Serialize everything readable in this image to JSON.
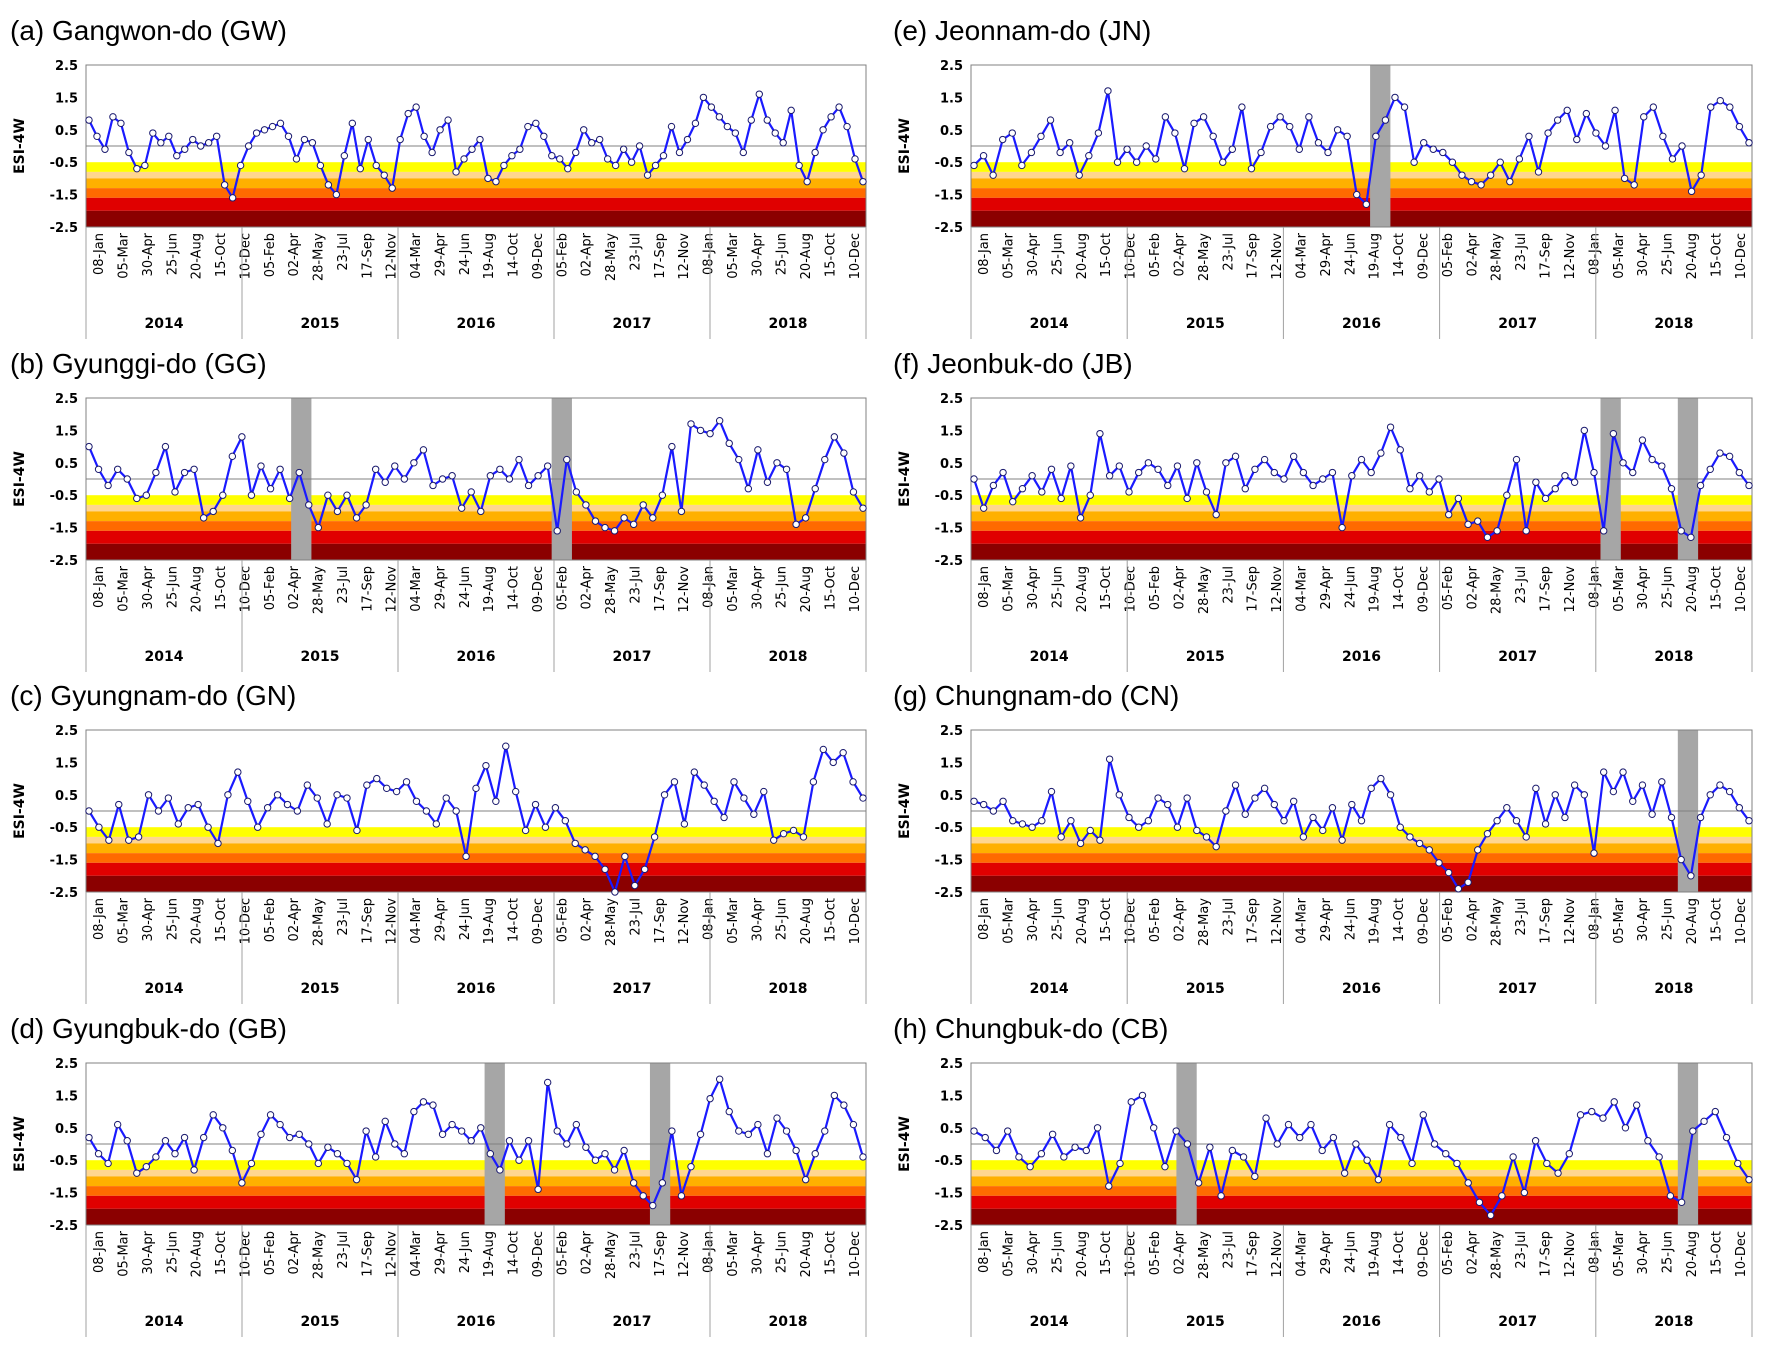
{
  "figure": {
    "band_colors": [
      "#ffff00",
      "#ffd690",
      "#ffb000",
      "#ff6a00",
      "#e00000",
      "#8b0000"
    ],
    "band_edges": [
      -0.5,
      -0.8,
      -1.0,
      -1.3,
      -1.6,
      -2.0,
      -2.5
    ],
    "line_color": "#1a1aff",
    "shade_color": "#a6a6a6"
  },
  "chart_data": [
    {
      "type": "line",
      "title": "(a) Gangwon-do (GW)",
      "ylabel": "ESI-4W",
      "ylim": [
        -2.5,
        2.5
      ],
      "yticks": [
        "2.5",
        "1.5",
        "0.5",
        "-0.5",
        "-1.5",
        "-2.5"
      ],
      "xticks": [
        "08-Jan",
        "05-Mar",
        "30-Apr",
        "25-Jun",
        "20-Aug",
        "15-Oct",
        "10-Dec",
        "05-Feb",
        "02-Apr",
        "28-May",
        "23-Jul",
        "17-Sep",
        "12-Nov",
        "04-Mar",
        "29-Apr",
        "24-Jun",
        "19-Aug",
        "14-Oct",
        "09-Dec",
        "05-Feb",
        "02-Apr",
        "28-May",
        "23-Jul",
        "17-Sep",
        "12-Nov",
        "08-Jan",
        "05-Mar",
        "30-Apr",
        "25-Jun",
        "20-Aug",
        "15-Oct",
        "10-Dec"
      ],
      "years": [
        "2014",
        "2015",
        "2016",
        "2017",
        "2018"
      ],
      "shaded_periods": [],
      "values": [
        0.8,
        0.3,
        -0.1,
        0.9,
        0.7,
        -0.2,
        -0.7,
        -0.6,
        0.4,
        0.1,
        0.3,
        -0.3,
        -0.1,
        0.2,
        0.0,
        0.1,
        0.3,
        -1.2,
        -1.6,
        -0.6,
        0.0,
        0.4,
        0.5,
        0.6,
        0.7,
        0.3,
        -0.4,
        0.2,
        0.1,
        -0.6,
        -1.2,
        -1.5,
        -0.3,
        0.7,
        -0.7,
        0.2,
        -0.6,
        -0.9,
        -1.3,
        0.2,
        1.0,
        1.2,
        0.3,
        -0.2,
        0.5,
        0.8,
        -0.8,
        -0.4,
        -0.1,
        0.2,
        -1.0,
        -1.1,
        -0.6,
        -0.3,
        -0.1,
        0.6,
        0.7,
        0.3,
        -0.3,
        -0.4,
        -0.7,
        -0.2,
        0.5,
        0.1,
        0.2,
        -0.4,
        -0.6,
        -0.1,
        -0.5,
        0.0,
        -0.9,
        -0.6,
        -0.3,
        0.6,
        -0.2,
        0.2,
        0.7,
        1.5,
        1.2,
        0.9,
        0.6,
        0.4,
        -0.2,
        0.8,
        1.6,
        0.8,
        0.4,
        0.1,
        1.1,
        -0.6,
        -1.1,
        -0.2,
        0.5,
        0.9,
        1.2,
        0.6,
        -0.4,
        -1.1
      ],
      "hline": 0
    },
    {
      "type": "line",
      "title": "(b) Gyunggi-do (GG)",
      "ylabel": "ESI-4W",
      "ylim": [
        -2.5,
        2.5
      ],
      "yticks": [
        "2.5",
        "1.5",
        "0.5",
        "-0.5",
        "-1.5",
        "-2.5"
      ],
      "xticks": [
        "08-Jan",
        "05-Mar",
        "30-Apr",
        "25-Jun",
        "20-Aug",
        "15-Oct",
        "10-Dec",
        "05-Feb",
        "02-Apr",
        "28-May",
        "23-Jul",
        "17-Sep",
        "12-Nov",
        "04-Mar",
        "29-Apr",
        "24-Jun",
        "19-Aug",
        "14-Oct",
        "09-Dec",
        "05-Feb",
        "02-Apr",
        "28-May",
        "23-Jul",
        "17-Sep",
        "12-Nov",
        "08-Jan",
        "05-Mar",
        "30-Apr",
        "25-Jun",
        "20-Aug",
        "15-Oct",
        "10-Dec"
      ],
      "years": [
        "2014",
        "2015",
        "2016",
        "2017",
        "2018"
      ],
      "shaded_periods": [
        [
          0.263,
          0.289
        ],
        [
          0.597,
          0.623
        ]
      ],
      "values": [
        1.0,
        0.3,
        -0.2,
        0.3,
        0.0,
        -0.6,
        -0.5,
        0.2,
        1.0,
        -0.4,
        0.2,
        0.3,
        -1.2,
        -1.0,
        -0.5,
        0.7,
        1.3,
        -0.5,
        0.4,
        -0.3,
        0.3,
        -0.6,
        0.2,
        -0.8,
        -1.5,
        -0.5,
        -1.0,
        -0.5,
        -1.2,
        -0.8,
        0.3,
        -0.1,
        0.4,
        0.0,
        0.5,
        0.9,
        -0.2,
        0.0,
        0.1,
        -0.9,
        -0.4,
        -1.0,
        0.1,
        0.3,
        0.0,
        0.6,
        -0.2,
        0.1,
        0.4,
        -1.6,
        0.6,
        -0.4,
        -0.8,
        -1.3,
        -1.5,
        -1.6,
        -1.2,
        -1.4,
        -0.8,
        -1.2,
        -0.5,
        1.0,
        -1.0,
        1.7,
        1.5,
        1.4,
        1.8,
        1.1,
        0.6,
        -0.3,
        0.9,
        -0.1,
        0.5,
        0.3,
        -1.4,
        -1.2,
        -0.3,
        0.6,
        1.3,
        0.8,
        -0.4,
        -0.9
      ],
      "hline": 0
    },
    {
      "type": "line",
      "title": "(c) Gyungnam-do (GN)",
      "ylabel": "ESI-4W",
      "ylim": [
        -2.5,
        2.5
      ],
      "yticks": [
        "2.5",
        "1.5",
        "0.5",
        "-0.5",
        "-1.5",
        "-2.5"
      ],
      "xticks": [
        "08-Jan",
        "05-Mar",
        "30-Apr",
        "25-Jun",
        "20-Aug",
        "15-Oct",
        "10-Dec",
        "05-Feb",
        "02-Apr",
        "28-May",
        "23-Jul",
        "17-Sep",
        "12-Nov",
        "04-Mar",
        "29-Apr",
        "24-Jun",
        "19-Aug",
        "14-Oct",
        "09-Dec",
        "05-Feb",
        "02-Apr",
        "28-May",
        "23-Jul",
        "17-Sep",
        "12-Nov",
        "08-Jan",
        "05-Mar",
        "30-Apr",
        "25-Jun",
        "20-Aug",
        "15-Oct",
        "10-Dec"
      ],
      "years": [
        "2014",
        "2015",
        "2016",
        "2017",
        "2018"
      ],
      "shaded_periods": [],
      "values": [
        0.0,
        -0.5,
        -0.9,
        0.2,
        -0.9,
        -0.8,
        0.5,
        0.0,
        0.4,
        -0.4,
        0.1,
        0.2,
        -0.5,
        -1.0,
        0.5,
        1.2,
        0.3,
        -0.5,
        0.1,
        0.5,
        0.2,
        0.0,
        0.8,
        0.4,
        -0.4,
        0.5,
        0.4,
        -0.6,
        0.8,
        1.0,
        0.7,
        0.6,
        0.9,
        0.3,
        0.0,
        -0.4,
        0.4,
        0.0,
        -1.4,
        0.7,
        1.4,
        0.3,
        2.0,
        0.6,
        -0.6,
        0.2,
        -0.5,
        0.1,
        -0.3,
        -1.0,
        -1.2,
        -1.4,
        -1.8,
        -2.5,
        -1.4,
        -2.3,
        -1.8,
        -0.8,
        0.5,
        0.9,
        -0.4,
        1.2,
        0.8,
        0.3,
        -0.2,
        0.9,
        0.4,
        -0.1,
        0.6,
        -0.9,
        -0.7,
        -0.6,
        -0.8,
        0.9,
        1.9,
        1.5,
        1.8,
        0.9,
        0.4
      ],
      "hline": 0
    },
    {
      "type": "line",
      "title": "(d) Gyungbuk-do (GB)",
      "ylabel": "ESI-4W",
      "ylim": [
        -2.5,
        2.5
      ],
      "yticks": [
        "2.5",
        "1.5",
        "0.5",
        "-0.5",
        "-1.5",
        "-2.5"
      ],
      "xticks": [
        "08-Jan",
        "05-Mar",
        "30-Apr",
        "25-Jun",
        "20-Aug",
        "15-Oct",
        "10-Dec",
        "05-Feb",
        "02-Apr",
        "28-May",
        "23-Jul",
        "17-Sep",
        "12-Nov",
        "04-Mar",
        "29-Apr",
        "24-Jun",
        "19-Aug",
        "14-Oct",
        "09-Dec",
        "05-Feb",
        "02-Apr",
        "28-May",
        "23-Jul",
        "17-Sep",
        "12-Nov",
        "08-Jan",
        "05-Mar",
        "30-Apr",
        "25-Jun",
        "20-Aug",
        "15-Oct",
        "10-Dec"
      ],
      "years": [
        "2014",
        "2015",
        "2016",
        "2017",
        "2018"
      ],
      "shaded_periods": [
        [
          0.511,
          0.537
        ],
        [
          0.723,
          0.749
        ]
      ],
      "values": [
        0.2,
        -0.3,
        -0.6,
        0.6,
        0.1,
        -0.9,
        -0.7,
        -0.4,
        0.1,
        -0.3,
        0.2,
        -0.8,
        0.2,
        0.9,
        0.5,
        -0.2,
        -1.2,
        -0.6,
        0.3,
        0.9,
        0.6,
        0.2,
        0.3,
        0.0,
        -0.6,
        -0.1,
        -0.3,
        -0.6,
        -1.1,
        0.4,
        -0.4,
        0.7,
        0.0,
        -0.3,
        1.0,
        1.3,
        1.2,
        0.3,
        0.6,
        0.4,
        0.1,
        0.5,
        -0.3,
        -0.8,
        0.1,
        -0.5,
        0.1,
        -1.4,
        1.9,
        0.4,
        0.0,
        0.6,
        -0.1,
        -0.5,
        -0.3,
        -0.8,
        -0.2,
        -1.2,
        -1.6,
        -1.9,
        -1.2,
        0.4,
        -1.6,
        -0.7,
        0.3,
        1.4,
        2.0,
        1.0,
        0.4,
        0.3,
        0.6,
        -0.3,
        0.8,
        0.4,
        -0.2,
        -1.1,
        -0.3,
        0.4,
        1.5,
        1.2,
        0.6,
        -0.4
      ],
      "hline": 0
    },
    {
      "type": "line",
      "title": "(e) Jeonnam-do (JN)",
      "ylabel": "ESI-4W",
      "ylim": [
        -2.5,
        2.5
      ],
      "yticks": [
        "2.5",
        "1.5",
        "0.5",
        "-0.5",
        "-1.5",
        "-2.5"
      ],
      "xticks": [
        "08-Jan",
        "05-Mar",
        "30-Apr",
        "25-Jun",
        "20-Aug",
        "15-Oct",
        "10-Dec",
        "05-Feb",
        "02-Apr",
        "28-May",
        "23-Jul",
        "17-Sep",
        "12-Nov",
        "04-Mar",
        "29-Apr",
        "24-Jun",
        "19-Aug",
        "14-Oct",
        "09-Dec",
        "05-Feb",
        "02-Apr",
        "28-May",
        "23-Jul",
        "17-Sep",
        "12-Nov",
        "08-Jan",
        "05-Mar",
        "30-Apr",
        "25-Jun",
        "20-Aug",
        "15-Oct",
        "10-Dec"
      ],
      "years": [
        "2014",
        "2015",
        "2016",
        "2017",
        "2018"
      ],
      "shaded_periods": [
        [
          0.511,
          0.537
        ]
      ],
      "values": [
        -0.6,
        -0.3,
        -0.9,
        0.2,
        0.4,
        -0.6,
        -0.2,
        0.3,
        0.8,
        -0.2,
        0.1,
        -0.9,
        -0.3,
        0.4,
        1.7,
        -0.5,
        -0.1,
        -0.5,
        0.0,
        -0.4,
        0.9,
        0.4,
        -0.7,
        0.7,
        0.9,
        0.3,
        -0.5,
        -0.1,
        1.2,
        -0.7,
        -0.2,
        0.6,
        0.9,
        0.6,
        -0.1,
        0.9,
        0.1,
        -0.2,
        0.5,
        0.3,
        -1.5,
        -1.8,
        0.3,
        0.8,
        1.5,
        1.2,
        -0.5,
        0.1,
        -0.1,
        -0.2,
        -0.5,
        -0.9,
        -1.1,
        -1.2,
        -0.9,
        -0.5,
        -1.1,
        -0.4,
        0.3,
        -0.8,
        0.4,
        0.8,
        1.1,
        0.2,
        1.0,
        0.4,
        0.0,
        1.1,
        -1.0,
        -1.2,
        0.9,
        1.2,
        0.3,
        -0.4,
        0.0,
        -1.4,
        -0.9,
        1.2,
        1.4,
        1.2,
        0.6,
        0.1
      ],
      "hline": 0
    },
    {
      "type": "line",
      "title": "(f) Jeonbuk-do (JB)",
      "ylabel": "ESI-4W",
      "ylim": [
        -2.5,
        2.5
      ],
      "yticks": [
        "2.5",
        "1.5",
        "0.5",
        "-0.5",
        "-1.5",
        "-2.5"
      ],
      "xticks": [
        "08-Jan",
        "05-Mar",
        "30-Apr",
        "25-Jun",
        "20-Aug",
        "15-Oct",
        "10-Dec",
        "05-Feb",
        "02-Apr",
        "28-May",
        "23-Jul",
        "17-Sep",
        "12-Nov",
        "04-Mar",
        "29-Apr",
        "24-Jun",
        "19-Aug",
        "14-Oct",
        "09-Dec",
        "05-Feb",
        "02-Apr",
        "28-May",
        "23-Jul",
        "17-Sep",
        "12-Nov",
        "08-Jan",
        "05-Mar",
        "30-Apr",
        "25-Jun",
        "20-Aug",
        "15-Oct",
        "10-Dec"
      ],
      "years": [
        "2014",
        "2015",
        "2016",
        "2017",
        "2018"
      ],
      "shaded_periods": [
        [
          0.806,
          0.832
        ],
        [
          0.905,
          0.931
        ]
      ],
      "values": [
        0.0,
        -0.9,
        -0.2,
        0.2,
        -0.7,
        -0.3,
        0.1,
        -0.4,
        0.3,
        -0.6,
        0.4,
        -1.2,
        -0.5,
        1.4,
        0.1,
        0.4,
        -0.4,
        0.2,
        0.5,
        0.3,
        -0.2,
        0.4,
        -0.6,
        0.5,
        -0.4,
        -1.1,
        0.5,
        0.7,
        -0.3,
        0.3,
        0.6,
        0.2,
        0.0,
        0.7,
        0.2,
        -0.2,
        0.0,
        0.2,
        -1.5,
        0.1,
        0.6,
        0.2,
        0.8,
        1.6,
        0.9,
        -0.3,
        0.1,
        -0.4,
        0.0,
        -1.1,
        -0.6,
        -1.4,
        -1.3,
        -1.8,
        -1.6,
        -0.5,
        0.6,
        -1.6,
        -0.1,
        -0.6,
        -0.3,
        0.1,
        -0.1,
        1.5,
        0.2,
        -1.6,
        1.4,
        0.5,
        0.2,
        1.2,
        0.6,
        0.4,
        -0.3,
        -1.6,
        -1.8,
        -0.2,
        0.3,
        0.8,
        0.7,
        0.2,
        -0.2
      ],
      "hline": 0
    },
    {
      "type": "line",
      "title": "(g) Chungnam-do (CN)",
      "ylabel": "ESI-4W",
      "ylim": [
        -2.5,
        2.5
      ],
      "yticks": [
        "2.5",
        "1.5",
        "0.5",
        "-0.5",
        "-1.5",
        "-2.5"
      ],
      "xticks": [
        "08-Jan",
        "05-Mar",
        "30-Apr",
        "25-Jun",
        "20-Aug",
        "15-Oct",
        "10-Dec",
        "05-Feb",
        "02-Apr",
        "28-May",
        "23-Jul",
        "17-Sep",
        "12-Nov",
        "04-Mar",
        "29-Apr",
        "24-Jun",
        "19-Aug",
        "14-Oct",
        "09-Dec",
        "05-Feb",
        "02-Apr",
        "28-May",
        "23-Jul",
        "17-Sep",
        "12-Nov",
        "08-Jan",
        "05-Mar",
        "30-Apr",
        "25-Jun",
        "20-Aug",
        "15-Oct",
        "10-Dec"
      ],
      "years": [
        "2014",
        "2015",
        "2016",
        "2017",
        "2018"
      ],
      "shaded_periods": [
        [
          0.905,
          0.931
        ]
      ],
      "values": [
        0.3,
        0.2,
        0.0,
        0.3,
        -0.3,
        -0.4,
        -0.5,
        -0.3,
        0.6,
        -0.8,
        -0.3,
        -1.0,
        -0.6,
        -0.9,
        1.6,
        0.5,
        -0.2,
        -0.5,
        -0.3,
        0.4,
        0.2,
        -0.5,
        0.4,
        -0.6,
        -0.8,
        -1.1,
        0.0,
        0.8,
        -0.1,
        0.4,
        0.7,
        0.2,
        -0.3,
        0.3,
        -0.8,
        -0.2,
        -0.6,
        0.1,
        -0.9,
        0.2,
        -0.3,
        0.7,
        1.0,
        0.5,
        -0.5,
        -0.8,
        -1.0,
        -1.2,
        -1.6,
        -1.9,
        -2.4,
        -2.2,
        -1.2,
        -0.7,
        -0.3,
        0.1,
        -0.3,
        -0.8,
        0.7,
        -0.4,
        0.5,
        -0.2,
        0.8,
        0.5,
        -1.3,
        1.2,
        0.6,
        1.2,
        0.3,
        0.8,
        -0.1,
        0.9,
        -0.2,
        -1.5,
        -2.0,
        -0.2,
        0.5,
        0.8,
        0.6,
        0.1,
        -0.3
      ],
      "hline": 0
    },
    {
      "type": "line",
      "title": "(h) Chungbuk-do (CB)",
      "ylabel": "ESI-4W",
      "ylim": [
        -2.5,
        2.5
      ],
      "yticks": [
        "2.5",
        "1.5",
        "0.5",
        "-0.5",
        "-1.5",
        "-2.5"
      ],
      "xticks": [
        "08-Jan",
        "05-Mar",
        "30-Apr",
        "25-Jun",
        "20-Aug",
        "15-Oct",
        "10-Dec",
        "05-Feb",
        "02-Apr",
        "28-May",
        "23-Jul",
        "17-Sep",
        "12-Nov",
        "04-Mar",
        "29-Apr",
        "24-Jun",
        "19-Aug",
        "14-Oct",
        "09-Dec",
        "05-Feb",
        "02-Apr",
        "28-May",
        "23-Jul",
        "17-Sep",
        "12-Nov",
        "08-Jan",
        "05-Mar",
        "30-Apr",
        "25-Jun",
        "20-Aug",
        "15-Oct",
        "10-Dec"
      ],
      "years": [
        "2014",
        "2015",
        "2016",
        "2017",
        "2018"
      ],
      "shaded_periods": [
        [
          0.263,
          0.289
        ],
        [
          0.905,
          0.931
        ]
      ],
      "values": [
        0.4,
        0.2,
        -0.2,
        0.4,
        -0.4,
        -0.7,
        -0.3,
        0.3,
        -0.4,
        -0.1,
        -0.2,
        0.5,
        -1.3,
        -0.6,
        1.3,
        1.5,
        0.5,
        -0.7,
        0.4,
        0.0,
        -1.2,
        -0.1,
        -1.6,
        -0.2,
        -0.4,
        -1.0,
        0.8,
        0.0,
        0.6,
        0.2,
        0.6,
        -0.2,
        0.2,
        -0.9,
        0.0,
        -0.5,
        -1.1,
        0.6,
        0.2,
        -0.6,
        0.9,
        0.0,
        -0.3,
        -0.6,
        -1.2,
        -1.8,
        -2.2,
        -1.6,
        -0.4,
        -1.5,
        0.1,
        -0.6,
        -0.9,
        -0.3,
        0.9,
        1.0,
        0.8,
        1.3,
        0.5,
        1.2,
        0.1,
        -0.4,
        -1.6,
        -1.8,
        0.4,
        0.7,
        1.0,
        0.2,
        -0.6,
        -1.1
      ],
      "hline": 0
    }
  ]
}
